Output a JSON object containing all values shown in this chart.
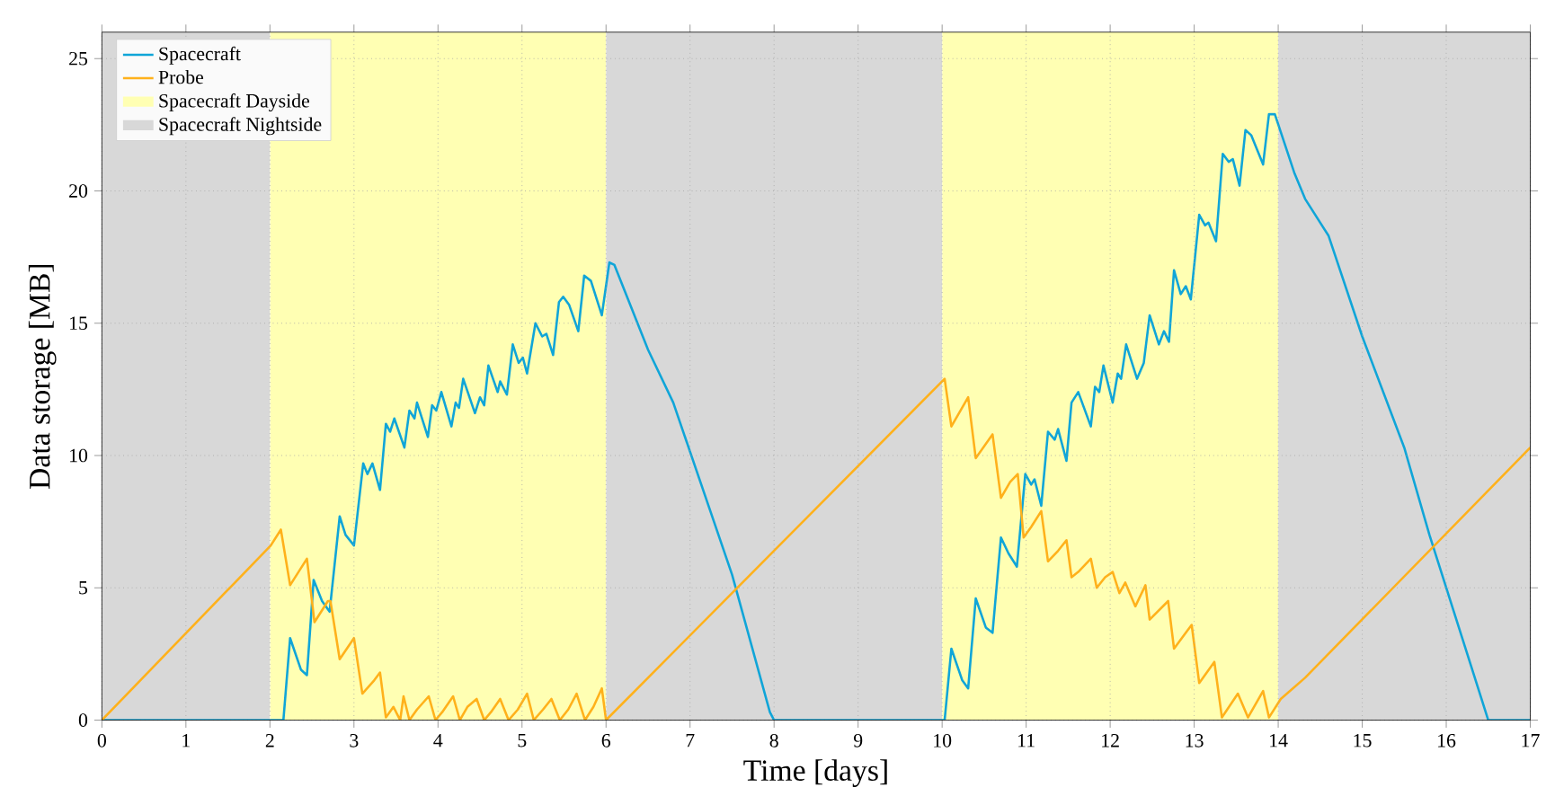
{
  "chart_data": {
    "type": "line",
    "xlabel": "Time [days]",
    "ylabel": "Data storage [MB]",
    "xlim": [
      0,
      17
    ],
    "ylim": [
      0,
      26
    ],
    "xticks": [
      0,
      1,
      2,
      3,
      4,
      5,
      6,
      7,
      8,
      9,
      10,
      11,
      12,
      13,
      14,
      15,
      16,
      17
    ],
    "yticks": [
      0,
      5,
      10,
      15,
      20,
      25
    ],
    "grid": true,
    "legend": "top left",
    "marker": "none",
    "line_style": "solid",
    "series": [
      {
        "name": "Spacecraft",
        "color": "#10a5d8",
        "x": [
          0,
          2.1,
          2.16,
          2.24,
          2.37,
          2.44,
          2.52,
          2.62,
          2.71,
          2.83,
          2.9,
          3.0,
          3.11,
          3.16,
          3.22,
          3.31,
          3.38,
          3.43,
          3.48,
          3.6,
          3.66,
          3.72,
          3.75,
          3.88,
          3.93,
          3.98,
          4.04,
          4.16,
          4.21,
          4.25,
          4.3,
          4.44,
          4.5,
          4.55,
          4.6,
          4.71,
          4.74,
          4.82,
          4.89,
          4.96,
          5.01,
          5.06,
          5.16,
          5.24,
          5.29,
          5.37,
          5.44,
          5.49,
          5.56,
          5.67,
          5.74,
          5.82,
          5.95,
          6.04,
          6.1,
          6.5,
          6.8,
          7.5,
          7.95,
          8.0,
          10.03,
          10.11,
          10.24,
          10.31,
          10.4,
          10.52,
          10.6,
          10.7,
          10.79,
          10.89,
          10.99,
          11.06,
          11.1,
          11.18,
          11.26,
          11.34,
          11.38,
          11.48,
          11.54,
          11.62,
          11.77,
          11.82,
          11.87,
          11.92,
          12.03,
          12.09,
          12.13,
          12.19,
          12.32,
          12.4,
          12.47,
          12.58,
          12.64,
          12.7,
          12.76,
          12.84,
          12.9,
          12.96,
          13.06,
          13.13,
          13.17,
          13.26,
          13.34,
          13.41,
          13.46,
          13.54,
          13.61,
          13.68,
          13.82,
          13.89,
          13.96,
          14.19,
          14.32,
          14.6,
          15.0,
          15.5,
          15.8,
          16.2,
          16.5,
          17.0
        ],
        "values": [
          0,
          0,
          0,
          3.1,
          1.9,
          1.7,
          5.3,
          4.5,
          4.1,
          7.7,
          7.0,
          6.6,
          9.7,
          9.3,
          9.7,
          8.7,
          11.2,
          10.9,
          11.4,
          10.3,
          11.7,
          11.4,
          12.0,
          10.7,
          11.9,
          11.7,
          12.4,
          11.1,
          12.0,
          11.8,
          12.9,
          11.6,
          12.2,
          11.9,
          13.4,
          12.4,
          12.8,
          12.3,
          14.2,
          13.5,
          13.7,
          13.1,
          15.0,
          14.5,
          14.6,
          13.8,
          15.8,
          16.0,
          15.7,
          14.7,
          16.8,
          16.6,
          15.3,
          17.3,
          17.2,
          14.0,
          12.0,
          5.5,
          0.3,
          0,
          0,
          2.7,
          1.5,
          1.2,
          4.6,
          3.5,
          3.3,
          6.9,
          6.3,
          5.8,
          9.3,
          8.9,
          9.1,
          8.1,
          10.9,
          10.6,
          11.0,
          9.8,
          12.0,
          12.4,
          11.1,
          12.6,
          12.4,
          13.4,
          12.0,
          13.1,
          12.9,
          14.2,
          12.9,
          13.5,
          15.3,
          14.2,
          14.7,
          14.3,
          17.0,
          16.1,
          16.4,
          15.9,
          19.1,
          18.7,
          18.8,
          18.1,
          21.4,
          21.1,
          21.2,
          20.2,
          22.3,
          22.1,
          21.0,
          22.9,
          22.9,
          20.7,
          19.7,
          18.3,
          14.5,
          10.3,
          7.0,
          3.0,
          0,
          0
        ]
      },
      {
        "name": "Probe",
        "color": "#ffb11b",
        "x": [
          0,
          2.01,
          2.13,
          2.24,
          2.44,
          2.53,
          2.69,
          2.72,
          2.83,
          3.0,
          3.1,
          3.24,
          3.31,
          3.38,
          3.47,
          3.55,
          3.59,
          3.66,
          3.75,
          3.89,
          3.97,
          4.05,
          4.18,
          4.26,
          4.35,
          4.46,
          4.55,
          4.63,
          4.74,
          4.84,
          4.95,
          5.06,
          5.14,
          5.25,
          5.35,
          5.45,
          5.55,
          5.65,
          5.75,
          5.85,
          5.95,
          6.0,
          10.03,
          10.11,
          10.31,
          10.4,
          10.6,
          10.7,
          10.81,
          10.9,
          10.97,
          11.06,
          11.18,
          11.26,
          11.38,
          11.48,
          11.54,
          11.62,
          11.77,
          11.84,
          11.94,
          12.03,
          12.11,
          12.18,
          12.3,
          12.42,
          12.47,
          12.69,
          12.76,
          12.9,
          12.97,
          13.06,
          13.24,
          13.33,
          13.52,
          13.64,
          13.82,
          13.89,
          14.03,
          14.32,
          17.0
        ],
        "values": [
          0,
          6.6,
          7.2,
          5.1,
          6.1,
          3.7,
          4.5,
          4.5,
          2.3,
          3.1,
          1.0,
          1.5,
          1.8,
          0.1,
          0.5,
          0,
          0.9,
          0,
          0.4,
          0.9,
          0,
          0.3,
          0.9,
          0,
          0.5,
          0.8,
          0,
          0.3,
          0.8,
          0,
          0.4,
          1.0,
          0,
          0.4,
          0.8,
          0,
          0.4,
          1.0,
          0,
          0.5,
          1.2,
          0,
          12.9,
          11.1,
          12.2,
          9.9,
          10.8,
          8.4,
          9.0,
          9.3,
          6.9,
          7.3,
          7.9,
          6.0,
          6.4,
          6.8,
          5.4,
          5.6,
          6.1,
          5.0,
          5.4,
          5.6,
          4.8,
          5.2,
          4.3,
          5.1,
          3.8,
          4.5,
          2.7,
          3.3,
          3.6,
          1.4,
          2.2,
          0.1,
          1.0,
          0.1,
          1.1,
          0.1,
          0.8,
          1.6,
          10.3
        ]
      }
    ],
    "bands": [
      {
        "axis": "x",
        "from": 2,
        "to": 6,
        "color": "#ffffb3",
        "label": "Spacecraft Dayside"
      },
      {
        "axis": "x",
        "from": 0,
        "to": 2,
        "color": "#d8d8d8",
        "label": "Spacecraft Nightside"
      },
      {
        "axis": "x",
        "from": 6,
        "to": 10,
        "color": "#d8d8d8"
      },
      {
        "axis": "x",
        "from": 10,
        "to": 14,
        "color": "#ffffb3"
      },
      {
        "axis": "x",
        "from": 14,
        "to": 17,
        "color": "#d8d8d8"
      }
    ]
  }
}
